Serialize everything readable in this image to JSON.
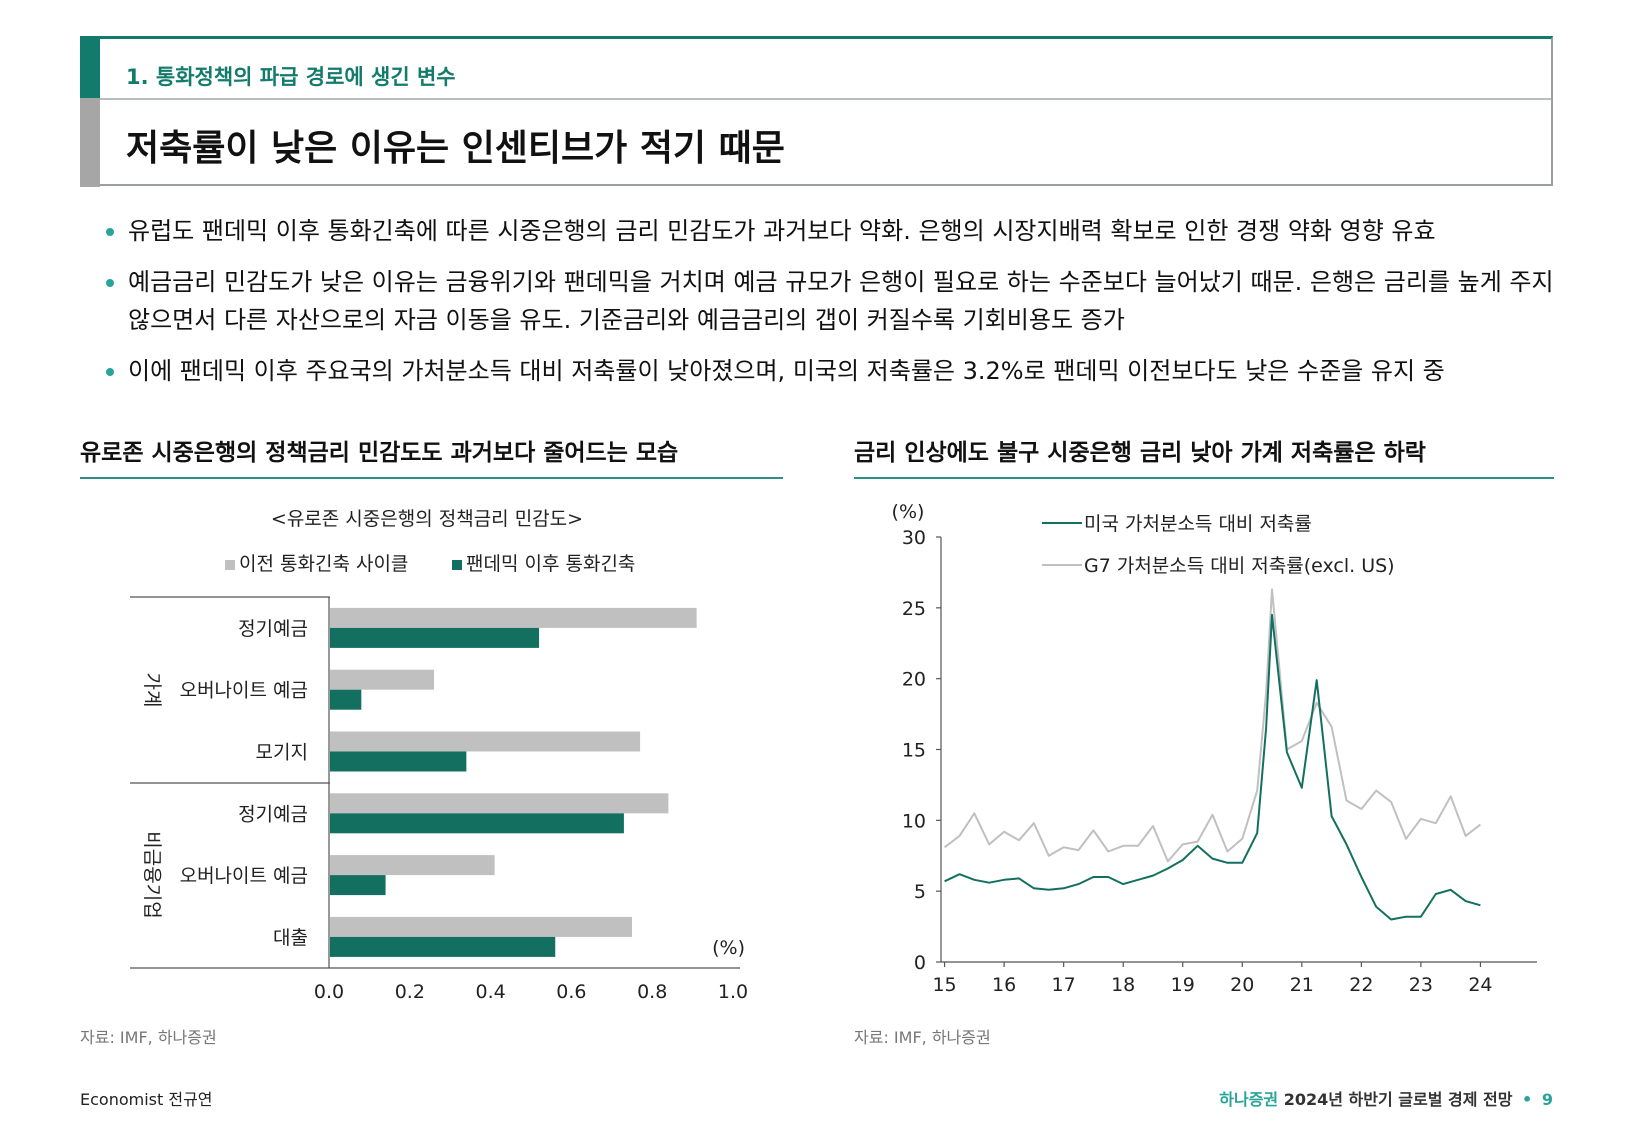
{
  "header": {
    "subtitle": "1. 통화정책의 파급 경로에 생긴 변수",
    "title": "저축률이 낮은 이유는 인센티브가 적기 때문"
  },
  "bullets": [
    "유럽도 팬데믹 이후 통화긴축에 따른 시중은행의 금리 민감도가 과거보다 약화. 은행의 시장지배력 확보로 인한 경쟁 약화 영향 유효",
    "예금금리 민감도가 낮은 이유는 금융위기와 팬데믹을 거치며 예금 규모가 은행이 필요로 하는 수준보다 늘어났기 때문. 은행은 금리를 높게 주지 않으면서 다른 자산으로의 자금 이동을 유도. 기준금리와 예금금리의 갭이 커질수록 기회비용도 증가",
    "이에 팬데믹 이후 주요국의 가처분소득 대비 저축률이 낮아졌으며, 미국의 저축률은 3.2%로 팬데믹 이전보다도 낮은 수준을 유지 중"
  ],
  "left_panel": {
    "title": "유로존 시중은행의 정책금리 민감도도 과거보다 줄어드는 모습",
    "source": "자료: IMF, 하나증권"
  },
  "right_panel": {
    "title": "금리 인상에도 불구 시중은행 금리 낮아 가계 저축률은 하락",
    "source": "자료: IMF, 하나증권"
  },
  "chart_data": [
    {
      "type": "bar",
      "orientation": "horizontal",
      "title": "<유로존 시중은행의 정책금리 민감도>",
      "unit": "(%)",
      "groups": [
        {
          "name": "가계",
          "categories": [
            "정기예금",
            "오버나이트 예금",
            "모기지"
          ]
        },
        {
          "name": "비금융기업",
          "categories": [
            "정기예금",
            "오버나이트 예금",
            "대출"
          ]
        }
      ],
      "categories": [
        "정기예금",
        "오버나이트 예금",
        "모기지",
        "정기예금",
        "오버나이트 예금",
        "대출"
      ],
      "series": [
        {
          "name": "이전 통화긴축 사이클",
          "color": "#c0c0c0",
          "values": [
            0.91,
            0.26,
            0.77,
            0.84,
            0.41,
            0.75
          ]
        },
        {
          "name": "팬데믹 이후 통화긴축",
          "color": "#137060",
          "values": [
            0.52,
            0.08,
            0.34,
            0.73,
            0.14,
            0.56
          ]
        }
      ],
      "xlim": [
        0,
        1.0
      ],
      "xticks": [
        0.0,
        0.2,
        0.4,
        0.6,
        0.8,
        1.0
      ],
      "xtick_labels": [
        "0.0",
        "0.2",
        "0.4",
        "0.6",
        "0.8",
        "1.0"
      ],
      "legend_position": "top"
    },
    {
      "type": "line",
      "ylabel": "(%)",
      "ylim": [
        0,
        30
      ],
      "yticks": [
        0,
        5,
        10,
        15,
        20,
        25,
        30
      ],
      "xlim": [
        14.94,
        24.95
      ],
      "xticks": [
        15,
        16,
        17,
        18,
        19,
        20,
        21,
        22,
        23,
        24
      ],
      "xtick_labels": [
        "15",
        "16",
        "17",
        "18",
        "19",
        "20",
        "21",
        "22",
        "23",
        "24"
      ],
      "legend_position": "top-right",
      "series": [
        {
          "name": "미국 가처분소득 대비 저축률",
          "color": "#137060",
          "x": [
            15.0,
            15.25,
            15.5,
            15.75,
            16.0,
            16.25,
            16.5,
            16.75,
            17.0,
            17.25,
            17.5,
            17.75,
            18.0,
            18.25,
            18.5,
            18.75,
            19.0,
            19.25,
            19.5,
            19.75,
            20.0,
            20.25,
            20.4,
            20.5,
            20.75,
            21.0,
            21.25,
            21.5,
            21.75,
            22.0,
            22.25,
            22.5,
            22.75,
            23.0,
            23.25,
            23.5,
            23.75,
            24.0
          ],
          "y": [
            5.7,
            6.2,
            5.8,
            5.6,
            5.8,
            5.9,
            5.2,
            5.1,
            5.2,
            5.5,
            6.0,
            6.0,
            5.5,
            5.8,
            6.1,
            6.6,
            7.2,
            8.2,
            7.3,
            7.0,
            7.0,
            9.1,
            16.5,
            24.5,
            14.8,
            12.3,
            19.9,
            10.3,
            8.3,
            6.0,
            3.9,
            3.0,
            3.2,
            3.2,
            4.8,
            5.1,
            4.3,
            4.0
          ]
        },
        {
          "name": "G7 가처분소득 대비 저축률(excl. US)",
          "color": "#c0c0c0",
          "x": [
            15.0,
            15.25,
            15.5,
            15.75,
            16.0,
            16.25,
            16.5,
            16.75,
            17.0,
            17.25,
            17.5,
            17.75,
            18.0,
            18.25,
            18.5,
            18.75,
            19.0,
            19.25,
            19.5,
            19.75,
            20.0,
            20.25,
            20.4,
            20.5,
            20.75,
            21.0,
            21.25,
            21.5,
            21.75,
            22.0,
            22.25,
            22.5,
            22.75,
            23.0,
            23.25,
            23.5,
            23.75,
            24.0
          ],
          "y": [
            8.1,
            8.9,
            10.5,
            8.3,
            9.2,
            8.6,
            9.8,
            7.5,
            8.1,
            7.9,
            9.3,
            7.8,
            8.2,
            8.2,
            9.6,
            7.1,
            8.3,
            8.5,
            10.4,
            7.8,
            8.7,
            12.1,
            19.0,
            26.3,
            15.0,
            15.6,
            18.3,
            16.6,
            11.4,
            10.8,
            12.1,
            11.3,
            8.7,
            10.1,
            9.8,
            11.7,
            8.9,
            9.7
          ]
        }
      ]
    }
  ],
  "footer": {
    "left": "Economist 전규연",
    "brand": "하나증권",
    "right_title": "2024년 하반기 글로벌 경제 전망",
    "page": "9"
  }
}
